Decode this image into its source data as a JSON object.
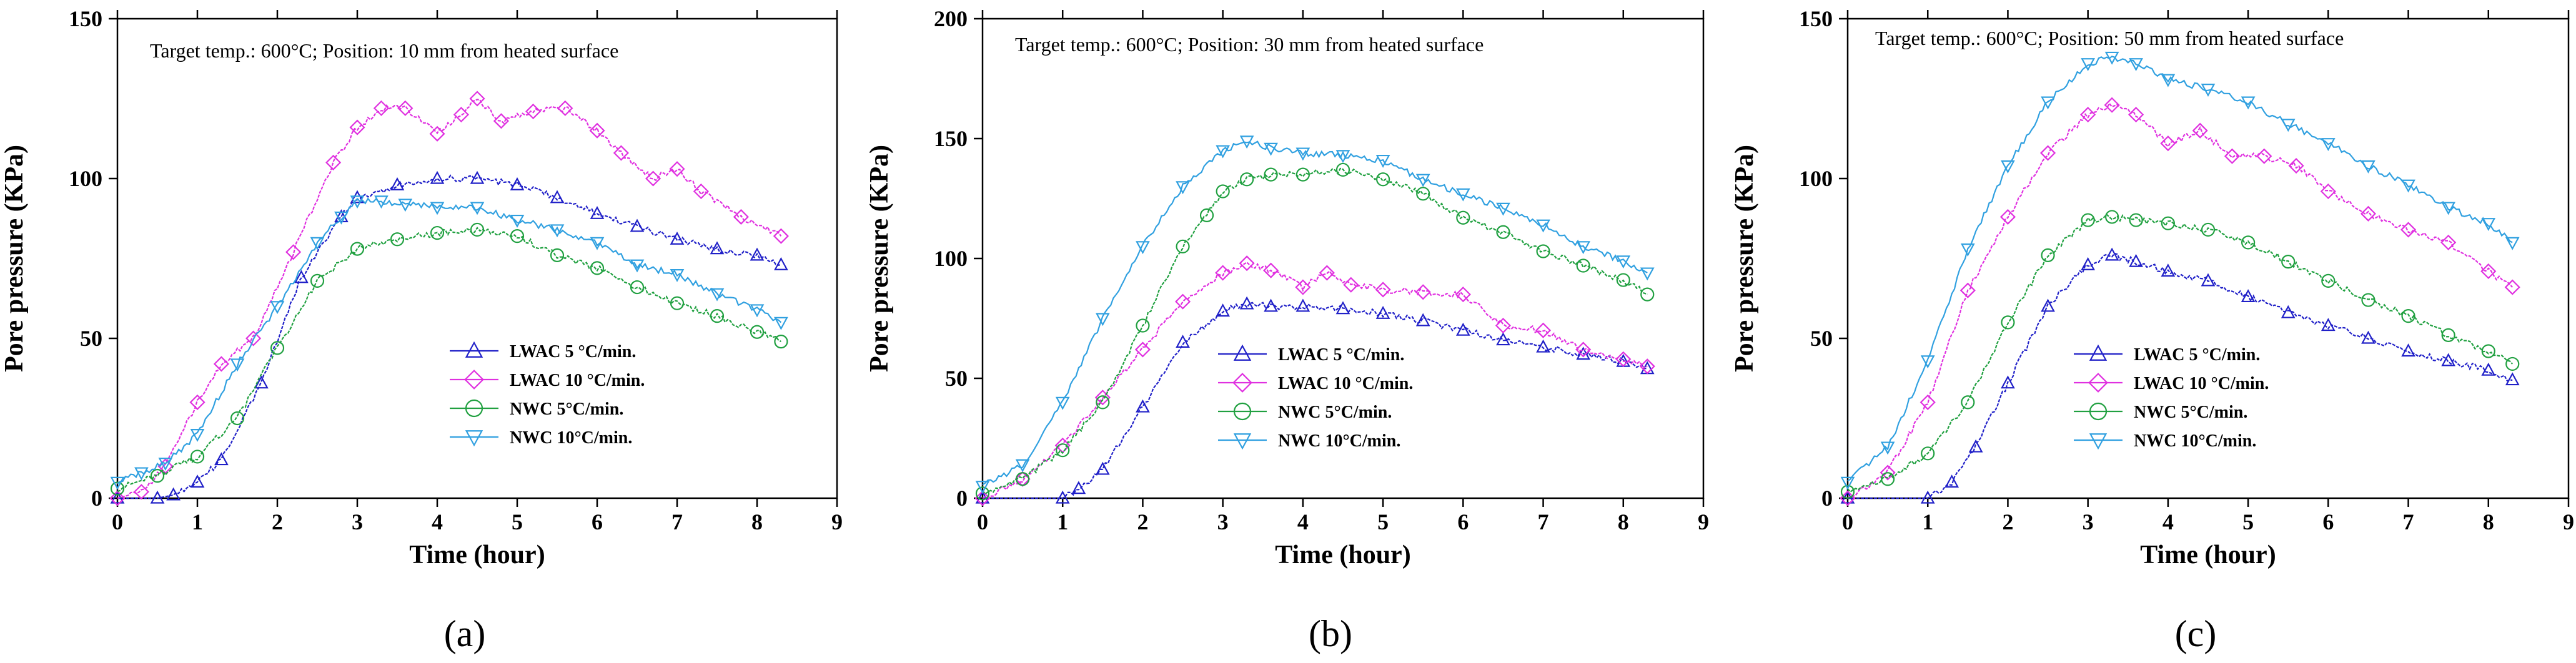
{
  "figure": {
    "panels": [
      {
        "id": "a",
        "caption": "(a)",
        "annotation": "Target temp.: 600°C; Position: 10 mm from heated surface",
        "xlabel": "Time (hour)",
        "ylabel": "Pore pressure (KPa)",
        "xlim": [
          0,
          9
        ],
        "ylim": [
          0,
          150
        ],
        "xticks": [
          0,
          1,
          2,
          3,
          4,
          5,
          6,
          7,
          8,
          9
        ],
        "yticks": [
          0,
          50,
          100,
          150
        ],
        "legend_order": [
          0,
          1,
          2,
          3
        ]
      },
      {
        "id": "b",
        "caption": "(b)",
        "annotation": "Target temp.: 600°C; Position: 30 mm from heated surface",
        "xlabel": "Time (hour)",
        "ylabel": "Pore pressure (KPa)",
        "xlim": [
          0,
          9
        ],
        "ylim": [
          0,
          200
        ],
        "xticks": [
          0,
          1,
          2,
          3,
          4,
          5,
          6,
          7,
          8,
          9
        ],
        "yticks": [
          0,
          50,
          100,
          150,
          200
        ]
      },
      {
        "id": "c",
        "caption": "(c)",
        "annotation": "Target temp.: 600°C; Position: 50 mm from heated surface",
        "xlabel": "Time (hour)",
        "ylabel": "Pore pressure (KPa)",
        "xlim": [
          0,
          9
        ],
        "ylim": [
          0,
          150
        ],
        "xticks": [
          0,
          1,
          2,
          3,
          4,
          5,
          6,
          7,
          8,
          9
        ],
        "yticks": [
          0,
          50,
          100,
          150
        ]
      }
    ]
  },
  "chart_data": [
    {
      "type": "line",
      "title": "Target temp.: 600°C; Position: 10 mm from heated surface",
      "xlabel": "Time (hour)",
      "ylabel": "Pore pressure (KPa)",
      "xlim": [
        0,
        9
      ],
      "ylim": [
        0,
        150
      ],
      "legend_position": "lower-right",
      "series": [
        {
          "name": "LWAC 5 °C/min.",
          "color": "#2020c8",
          "marker": "triangle-up",
          "x": [
            0,
            0.5,
            0.7,
            1.0,
            1.3,
            1.8,
            2.3,
            2.8,
            3.0,
            3.5,
            4.0,
            4.5,
            5.0,
            5.5,
            6.0,
            6.5,
            7.0,
            7.5,
            8.0,
            8.3
          ],
          "y": [
            0,
            0,
            1,
            5,
            12,
            36,
            69,
            88,
            94,
            98,
            100,
            100,
            98,
            94,
            89,
            85,
            81,
            78,
            76,
            73
          ]
        },
        {
          "name": "LWAC 10 °C/min.",
          "color": "#e030e0",
          "marker": "diamond",
          "x": [
            0,
            0.3,
            0.6,
            1.0,
            1.3,
            1.7,
            2.2,
            2.7,
            3.0,
            3.3,
            3.6,
            4.0,
            4.3,
            4.5,
            4.8,
            5.2,
            5.6,
            6.0,
            6.3,
            6.7,
            7.0,
            7.3,
            7.8,
            8.3
          ],
          "y": [
            0,
            2,
            10,
            30,
            42,
            50,
            77,
            105,
            116,
            122,
            122,
            114,
            120,
            125,
            118,
            121,
            122,
            115,
            108,
            100,
            103,
            96,
            88,
            82
          ]
        },
        {
          "name": "NWC 5°C/min.",
          "color": "#20a040",
          "marker": "circle",
          "x": [
            0,
            0.5,
            1.0,
            1.5,
            2.0,
            2.5,
            3.0,
            3.5,
            4.0,
            4.5,
            5.0,
            5.5,
            6.0,
            6.5,
            7.0,
            7.5,
            8.0,
            8.3
          ],
          "y": [
            3,
            7,
            13,
            25,
            47,
            68,
            78,
            81,
            83,
            84,
            82,
            76,
            72,
            66,
            61,
            57,
            52,
            49
          ]
        },
        {
          "name": "NWC 10°C/min.",
          "color": "#30a0e0",
          "marker": "triangle-down",
          "x": [
            0,
            0.3,
            0.6,
            1.0,
            1.5,
            2.0,
            2.5,
            2.8,
            3.0,
            3.3,
            3.6,
            4.0,
            4.5,
            5.0,
            5.5,
            6.0,
            6.5,
            7.0,
            7.5,
            8.0,
            8.3
          ],
          "y": [
            5,
            8,
            11,
            20,
            42,
            60,
            80,
            88,
            93,
            93,
            92,
            91,
            91,
            87,
            84,
            80,
            73,
            70,
            64,
            59,
            55
          ]
        }
      ]
    },
    {
      "type": "line",
      "title": "Target temp.: 600°C; Position: 30 mm from heated surface",
      "xlabel": "Time (hour)",
      "ylabel": "Pore pressure (KPa)",
      "xlim": [
        0,
        9
      ],
      "ylim": [
        0,
        200
      ],
      "legend_position": "lower-center",
      "series": [
        {
          "name": "LWAC 5 °C/min.",
          "color": "#2020c8",
          "marker": "triangle-up",
          "x": [
            0,
            1.0,
            1.2,
            1.5,
            2.0,
            2.5,
            3.0,
            3.3,
            3.6,
            4.0,
            4.5,
            5.0,
            5.5,
            6.0,
            6.5,
            7.0,
            7.5,
            8.0,
            8.3
          ],
          "y": [
            0,
            0,
            4,
            12,
            38,
            65,
            78,
            81,
            80,
            80,
            79,
            77,
            74,
            70,
            66,
            63,
            60,
            57,
            54
          ]
        },
        {
          "name": "LWAC 10 °C/min.",
          "color": "#e030e0",
          "marker": "diamond",
          "x": [
            0,
            0.5,
            1.0,
            1.5,
            2.0,
            2.5,
            3.0,
            3.3,
            3.6,
            4.0,
            4.3,
            4.6,
            5.0,
            5.5,
            6.0,
            6.5,
            7.0,
            7.5,
            8.0,
            8.3
          ],
          "y": [
            0,
            8,
            22,
            42,
            62,
            82,
            94,
            98,
            95,
            88,
            94,
            89,
            87,
            86,
            85,
            72,
            70,
            62,
            58,
            55
          ]
        },
        {
          "name": "NWC 5°C/min.",
          "color": "#20a040",
          "marker": "circle",
          "x": [
            0,
            0.5,
            1.0,
            1.5,
            2.0,
            2.5,
            2.8,
            3.0,
            3.3,
            3.6,
            4.0,
            4.5,
            5.0,
            5.5,
            6.0,
            6.5,
            7.0,
            7.5,
            8.0,
            8.3
          ],
          "y": [
            2,
            8,
            20,
            40,
            72,
            105,
            118,
            128,
            133,
            135,
            135,
            137,
            133,
            127,
            117,
            111,
            103,
            97,
            91,
            85
          ]
        },
        {
          "name": "NWC 10°C/min.",
          "color": "#30a0e0",
          "marker": "triangle-down",
          "x": [
            0,
            0.5,
            1.0,
            1.5,
            2.0,
            2.5,
            3.0,
            3.3,
            3.6,
            4.0,
            4.5,
            5.0,
            5.5,
            6.0,
            6.5,
            7.0,
            7.5,
            8.0,
            8.3
          ],
          "y": [
            5,
            14,
            40,
            75,
            105,
            130,
            145,
            149,
            146,
            144,
            143,
            141,
            133,
            127,
            121,
            114,
            105,
            99,
            94
          ]
        }
      ]
    },
    {
      "type": "line",
      "title": "Target temp.: 600°C; Position: 50 mm from heated surface",
      "xlabel": "Time (hour)",
      "ylabel": "Pore pressure (KPa)",
      "xlim": [
        0,
        9
      ],
      "ylim": [
        0,
        150
      ],
      "legend_position": "lower-center",
      "series": [
        {
          "name": "LWAC 5 °C/min.",
          "color": "#2020c8",
          "marker": "triangle-up",
          "x": [
            0,
            1.0,
            1.3,
            1.6,
            2.0,
            2.5,
            3.0,
            3.3,
            3.6,
            4.0,
            4.5,
            5.0,
            5.5,
            6.0,
            6.5,
            7.0,
            7.5,
            8.0,
            8.3
          ],
          "y": [
            0,
            0,
            5,
            16,
            36,
            60,
            73,
            76,
            74,
            71,
            68,
            63,
            58,
            54,
            50,
            46,
            43,
            40,
            37
          ]
        },
        {
          "name": "LWAC 10 °C/min.",
          "color": "#e030e0",
          "marker": "diamond",
          "x": [
            0,
            0.5,
            1.0,
            1.5,
            2.0,
            2.5,
            3.0,
            3.3,
            3.6,
            4.0,
            4.4,
            4.8,
            5.2,
            5.6,
            6.0,
            6.5,
            7.0,
            7.5,
            8.0,
            8.3
          ],
          "y": [
            0,
            8,
            30,
            65,
            88,
            108,
            120,
            123,
            120,
            111,
            115,
            107,
            107,
            104,
            96,
            89,
            84,
            80,
            71,
            66
          ]
        },
        {
          "name": "NWC 5°C/min.",
          "color": "#20a040",
          "marker": "circle",
          "x": [
            0,
            0.5,
            1.0,
            1.5,
            2.0,
            2.5,
            3.0,
            3.3,
            3.6,
            4.0,
            4.5,
            5.0,
            5.5,
            6.0,
            6.5,
            7.0,
            7.5,
            8.0,
            8.3
          ],
          "y": [
            2,
            6,
            14,
            30,
            55,
            76,
            87,
            88,
            87,
            86,
            84,
            80,
            74,
            68,
            62,
            57,
            51,
            46,
            42
          ]
        },
        {
          "name": "NWC 10°C/min.",
          "color": "#30a0e0",
          "marker": "triangle-down",
          "x": [
            0,
            0.5,
            1.0,
            1.5,
            2.0,
            2.5,
            3.0,
            3.3,
            3.6,
            4.0,
            4.5,
            5.0,
            5.5,
            6.0,
            6.5,
            7.0,
            7.5,
            8.0,
            8.3
          ],
          "y": [
            5,
            16,
            43,
            78,
            104,
            124,
            136,
            138,
            136,
            131,
            128,
            124,
            117,
            111,
            104,
            98,
            91,
            86,
            80
          ]
        }
      ]
    }
  ]
}
